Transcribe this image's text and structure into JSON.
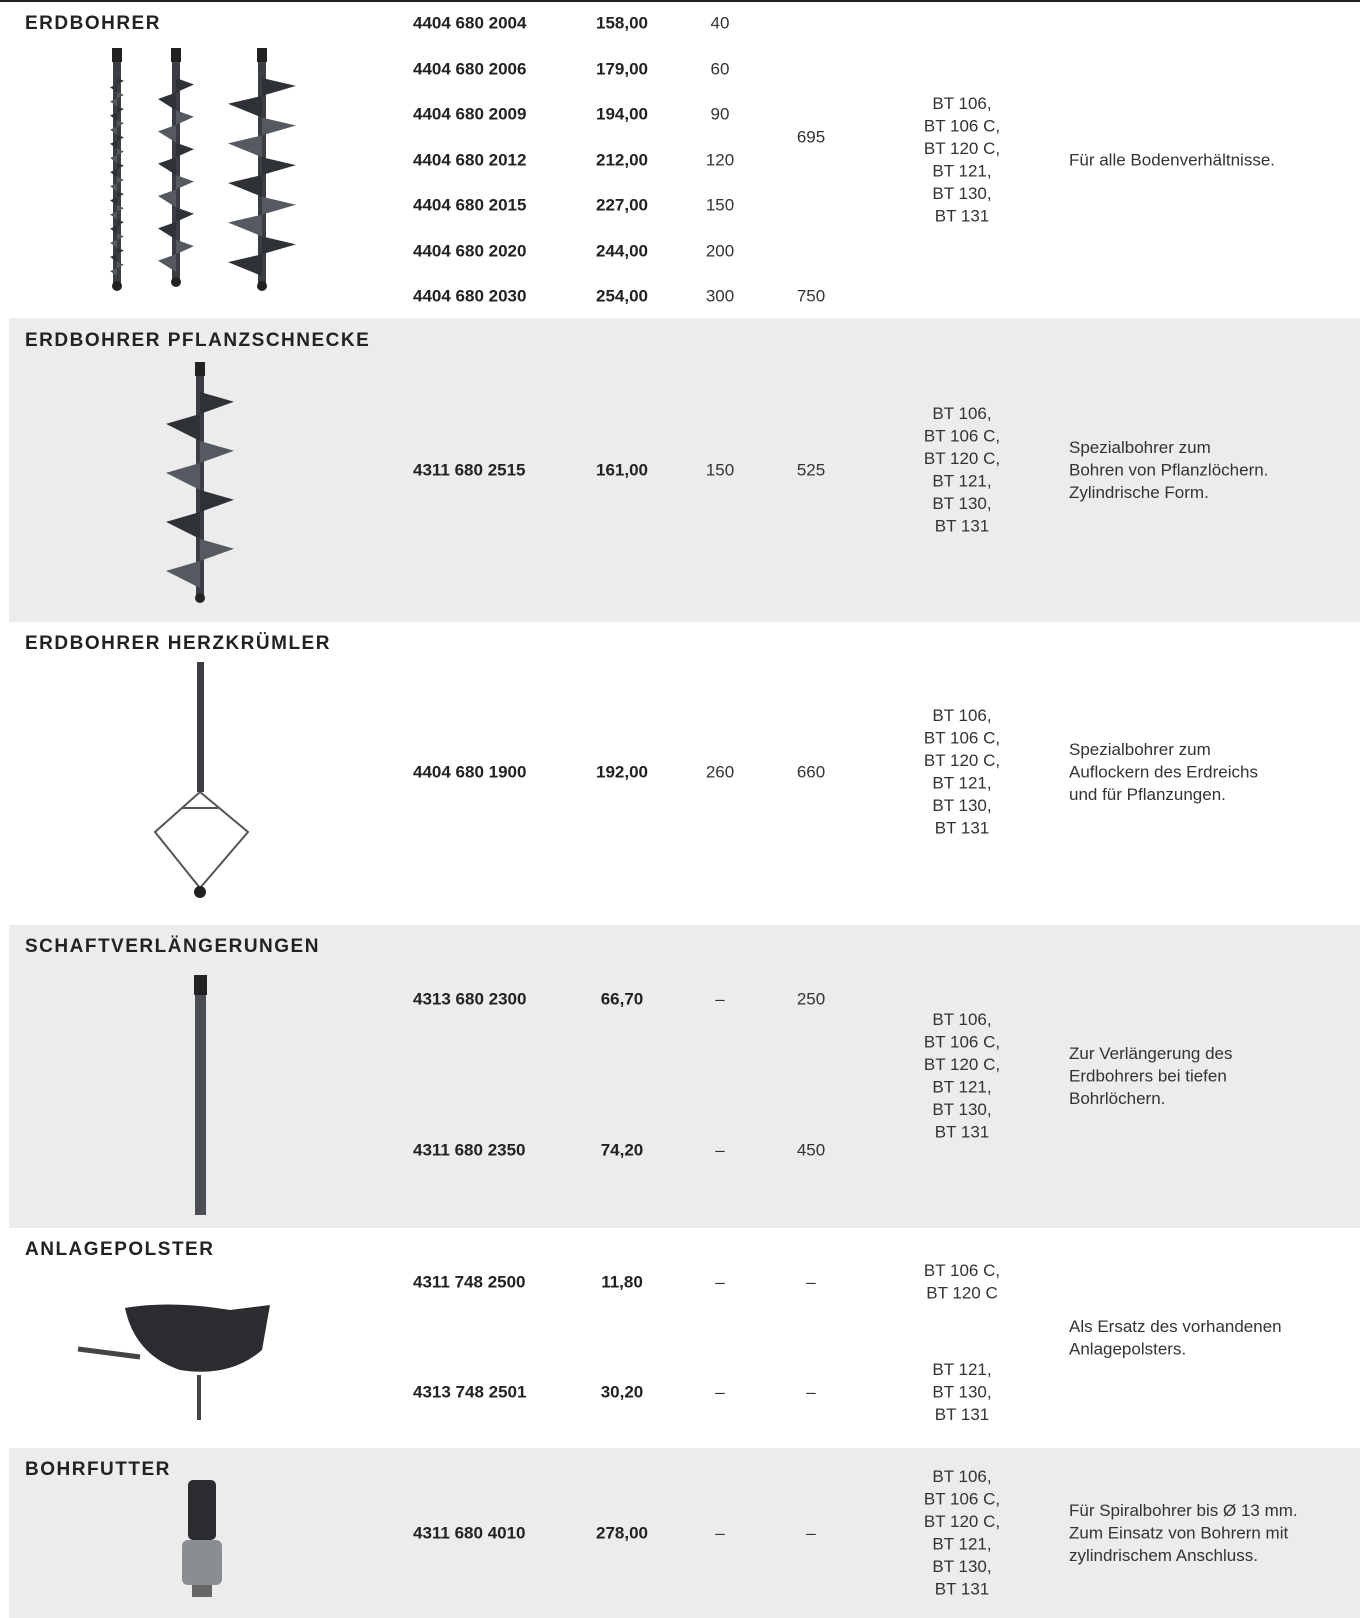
{
  "sections": [
    {
      "title": "ERDBOHRER",
      "rows": [
        [
          "4404 680 2004",
          "158,00",
          "40"
        ],
        [
          "4404 680 2006",
          "179,00",
          "60"
        ],
        [
          "4404 680 2009",
          "194,00",
          "90"
        ],
        [
          "4404 680 2012",
          "212,00",
          "120"
        ],
        [
          "4404 680 2015",
          "227,00",
          "150"
        ],
        [
          "4404 680 2020",
          "244,00",
          "200"
        ],
        [
          "4404 680 2030",
          "254,00",
          "300"
        ]
      ],
      "lengths": [
        "695",
        "750"
      ],
      "compat": [
        [
          "BT 106,",
          "BT 106 C,",
          "BT 120 C,",
          "BT 121,",
          "BT 130,",
          "BT 131"
        ]
      ],
      "description": [
        "Für alle Bodenverhältnisse."
      ]
    },
    {
      "title": "ERDBOHRER PFLANZSCHNECKE",
      "rows": [
        [
          "4311 680 2515",
          "161,00",
          "150"
        ]
      ],
      "lengths": [
        "525"
      ],
      "compat": [
        [
          "BT 106,",
          "BT 106 C,",
          "BT 120 C,",
          "BT 121,",
          "BT 130,",
          "BT 131"
        ]
      ],
      "description": [
        "Spezialbohrer zum",
        "Bohren von Pflanzlöchern.",
        "Zylindrische Form."
      ]
    },
    {
      "title": "ERDBOHRER HERZKRÜMLER",
      "rows": [
        [
          "4404 680 1900",
          "192,00",
          "260"
        ]
      ],
      "lengths": [
        "660"
      ],
      "compat": [
        [
          "BT 106,",
          "BT 106 C,",
          "BT 120 C,",
          "BT 121,",
          "BT 130,",
          "BT 131"
        ]
      ],
      "description": [
        "Spezialbohrer zum",
        "Auflockern des Erdreichs",
        "und für Pflanzungen."
      ]
    },
    {
      "title": "SCHAFTVERLÄNGERUNGEN",
      "rows": [
        [
          "4313 680 2300",
          "66,70",
          "–"
        ],
        [
          "4311 680 2350",
          "74,20",
          "–"
        ]
      ],
      "lengths": [
        "250",
        "450"
      ],
      "compat": [
        [
          "BT 106,",
          "BT 106 C,",
          "BT 120 C,",
          "BT 121,",
          "BT 130,",
          "BT 131"
        ]
      ],
      "description": [
        "Zur Verlängerung des",
        "Erdbohrers bei tiefen",
        "Bohrlöchern."
      ]
    },
    {
      "title": "ANLAGEPOLSTER",
      "rows": [
        [
          "4311 748 2500",
          "11,80",
          "–"
        ],
        [
          "4313 748 2501",
          "30,20",
          "–"
        ]
      ],
      "lengths": [
        "–",
        "–"
      ],
      "compat": [
        [
          "BT 106 C,",
          "BT 120 C"
        ],
        [
          "BT 121,",
          "BT 130,",
          "BT 131"
        ]
      ],
      "description": [
        "Als Ersatz des vorhandenen",
        "Anlagepolsters."
      ]
    },
    {
      "title": "BOHRFUTTER",
      "rows": [
        [
          "4311 680 4010",
          "278,00",
          "–"
        ]
      ],
      "lengths": [
        "–"
      ],
      "compat": [
        [
          "BT 106,",
          "BT 106 C,",
          "BT 120 C,",
          "BT 121,",
          "BT 130,",
          "BT 131"
        ]
      ],
      "description": [
        "Für Spiralbohrer bis Ø 13 mm.",
        "Zum Einsatz von Bohrern mit",
        "zylindrischem Anschluss."
      ]
    }
  ]
}
